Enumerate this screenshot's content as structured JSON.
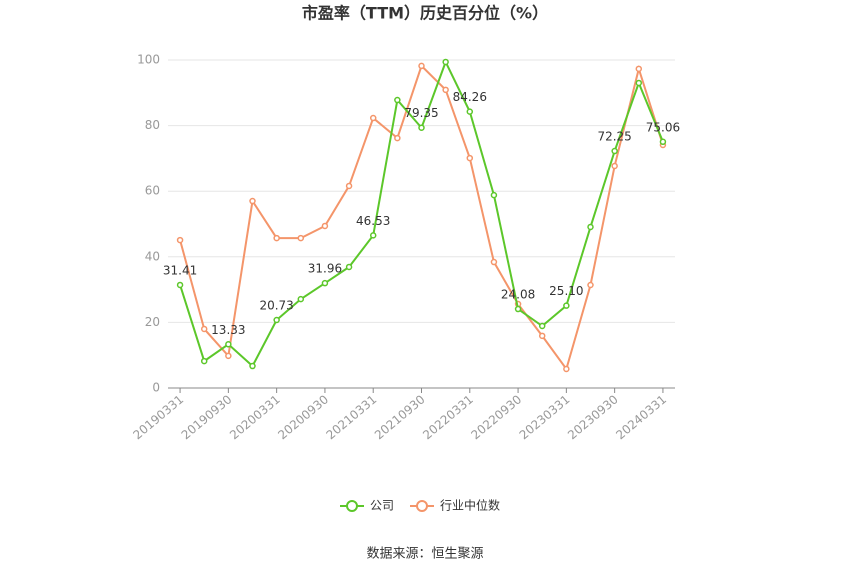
{
  "chart_data": {
    "type": "line",
    "title": "市盈率（TTM）历史百分位（%）",
    "source": "数据来源：恒生聚源",
    "categories": [
      "20190331",
      null,
      "20190930",
      null,
      "20200331",
      null,
      "20200930",
      null,
      "20210331",
      null,
      "20210930",
      null,
      "20220331",
      null,
      "20220930",
      null,
      "20230331",
      null,
      "20230930",
      null,
      "20240331"
    ],
    "series": [
      {
        "name": "公司",
        "color": "#5cc72a",
        "values": [
          31.41,
          8.2,
          13.33,
          6.7,
          20.73,
          27.1,
          31.96,
          36.9,
          46.53,
          87.8,
          79.35,
          99.4,
          84.26,
          58.8,
          24.08,
          18.9,
          25.1,
          49.1,
          72.25,
          93.0,
          75.06
        ],
        "value_labels": [
          "31.41",
          null,
          "13.33",
          null,
          "20.73",
          null,
          "31.96",
          null,
          "46.53",
          null,
          "79.35",
          null,
          "84.26",
          null,
          "24.08",
          null,
          "25.10",
          null,
          "72.25",
          null,
          "75.06"
        ]
      },
      {
        "name": "行业中位数",
        "color": "#f4956a",
        "values": [
          45.1,
          18.0,
          9.8,
          57.0,
          45.7,
          45.7,
          49.4,
          61.6,
          82.3,
          76.2,
          98.2,
          90.9,
          70.1,
          38.4,
          25.6,
          15.9,
          5.8,
          31.4,
          67.7,
          97.3,
          74.1
        ]
      }
    ],
    "ylim": [
      0,
      100
    ],
    "yticks": [
      0,
      20,
      40,
      60,
      80,
      100
    ],
    "grid": true,
    "legend": "bottom"
  }
}
